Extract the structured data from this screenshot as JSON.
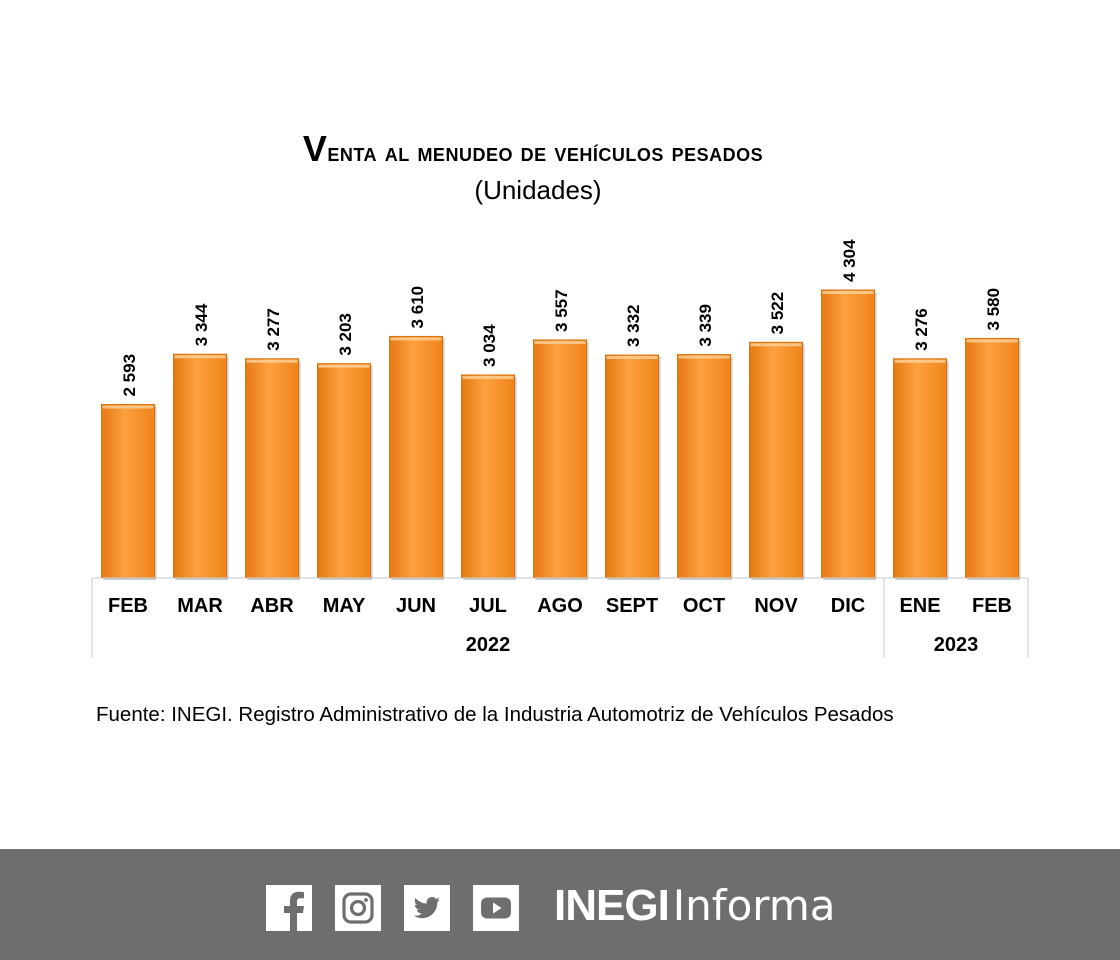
{
  "chart_data": {
    "type": "bar",
    "title": "Venta al menudeo de vehículos pesados",
    "subtitle": "(Unidades)",
    "categories": [
      "FEB",
      "MAR",
      "ABR",
      "MAY",
      "JUN",
      "JUL",
      "AGO",
      "SEPT",
      "OCT",
      "NOV",
      "DIC",
      "ENE",
      "FEB"
    ],
    "groups": [
      {
        "label": "2022",
        "count": 11
      },
      {
        "label": "2023",
        "count": 2
      }
    ],
    "values": [
      2593,
      3344,
      3277,
      3203,
      3610,
      3034,
      3557,
      3332,
      3339,
      3522,
      4304,
      3276,
      3580
    ],
    "value_labels": [
      "2 593",
      "3 344",
      "3 277",
      "3 203",
      "3 610",
      "3 034",
      "3 557",
      "3 332",
      "3 339",
      "3 522",
      "4 304",
      "3 276",
      "3 580"
    ],
    "bar_color": "#f7941d",
    "grid": false
  },
  "source": "Fuente: INEGI. Registro Administrativo de la Industria Automotriz de Vehículos Pesados",
  "footer": {
    "background": "#6d6e70",
    "icons": [
      "facebook-icon",
      "instagram-icon",
      "twitter-icon",
      "youtube-icon"
    ],
    "brand_strong": "INEGI",
    "brand_light": "Informa"
  }
}
